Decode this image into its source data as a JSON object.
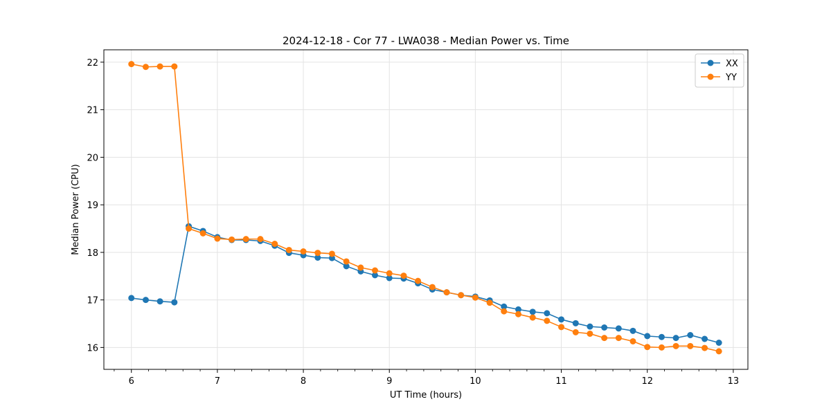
{
  "chart_data": {
    "type": "line",
    "title": "2024-12-18 - Cor 77 - LWA038 - Median Power vs. Time",
    "xlabel": "UT Time (hours)",
    "ylabel": "Median Power (CPU)",
    "xlim": [
      5.68,
      13.17
    ],
    "ylim": [
      15.54,
      22.26
    ],
    "xticks": [
      6,
      7,
      8,
      9,
      10,
      11,
      12,
      13
    ],
    "yticks": [
      16,
      17,
      18,
      19,
      20,
      21,
      22
    ],
    "grid": true,
    "legend_position": "top-right",
    "x": [
      6.0,
      6.167,
      6.333,
      6.5,
      6.667,
      6.833,
      7.0,
      7.167,
      7.333,
      7.5,
      7.667,
      7.833,
      8.0,
      8.167,
      8.333,
      8.5,
      8.667,
      8.833,
      9.0,
      9.167,
      9.333,
      9.5,
      9.667,
      9.833,
      10.0,
      10.167,
      10.333,
      10.5,
      10.667,
      10.833,
      11.0,
      11.167,
      11.333,
      11.5,
      11.667,
      11.833,
      12.0,
      12.167,
      12.333,
      12.5,
      12.667,
      12.833
    ],
    "series": [
      {
        "name": "XX",
        "color": "#1f77b4",
        "values": [
          17.04,
          17.0,
          16.97,
          16.95,
          18.55,
          18.45,
          18.32,
          18.26,
          18.26,
          18.24,
          18.14,
          17.99,
          17.94,
          17.89,
          17.88,
          17.71,
          17.6,
          17.52,
          17.46,
          17.45,
          17.35,
          17.22,
          17.16,
          17.1,
          17.07,
          16.99,
          16.86,
          16.8,
          16.75,
          16.72,
          16.59,
          16.51,
          16.44,
          16.42,
          16.4,
          16.35,
          16.24,
          16.22,
          16.2,
          16.26,
          16.18,
          16.1
        ]
      },
      {
        "name": "YY",
        "color": "#ff7f0e",
        "values": [
          21.96,
          21.9,
          21.91,
          21.91,
          18.5,
          18.4,
          18.29,
          18.27,
          18.28,
          18.28,
          18.18,
          18.05,
          18.02,
          17.99,
          17.97,
          17.81,
          17.68,
          17.62,
          17.56,
          17.51,
          17.4,
          17.27,
          17.16,
          17.1,
          17.05,
          16.94,
          16.76,
          16.7,
          16.63,
          16.56,
          16.43,
          16.32,
          16.29,
          16.2,
          16.2,
          16.13,
          16.01,
          16.0,
          16.03,
          16.03,
          15.99,
          15.92
        ]
      }
    ]
  }
}
